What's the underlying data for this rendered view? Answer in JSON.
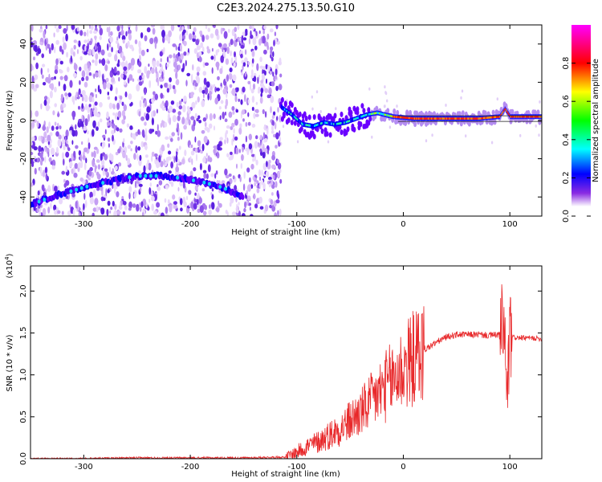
{
  "title": "C2E3.2024.275.13.50.G10",
  "chart_data": [
    {
      "type": "heatmap",
      "xlabel": "Height of straight line (km)",
      "ylabel": "Frequency (Hz)",
      "xlim": [
        -350,
        130
      ],
      "ylim": [
        -50,
        50
      ],
      "x_ticks": [
        -300,
        -200,
        -100,
        0,
        100
      ],
      "y_ticks": [
        -40,
        -20,
        0,
        20,
        40
      ],
      "colorbar": {
        "label": "Normalized spectral amplitude",
        "range": [
          0,
          1
        ],
        "ticks": [
          "0.0",
          "0.2",
          "0.4",
          "0.6",
          "0.8"
        ],
        "colors": [
          "#ffffff",
          "#7f00ff",
          "#0000ff",
          "#00ffff",
          "#00ff00",
          "#ffff00",
          "#ff0000",
          "#ff00ff"
        ]
      },
      "noise_region_x": [
        -350,
        -115
      ],
      "tones": [
        {
          "name": "lower tone",
          "x": [
            -350,
            -330,
            -300,
            -270,
            -250,
            -230,
            -210,
            -190,
            -170,
            -150
          ],
          "y": [
            -44,
            -40,
            -35,
            -31,
            -29,
            -29,
            -30,
            -32,
            -35,
            -40
          ]
        },
        {
          "name": "carrier",
          "x": [
            -115,
            -105,
            -95,
            -85,
            -75,
            -65,
            -55,
            -45,
            -35,
            -25,
            -10,
            10,
            40,
            70,
            90,
            95,
            100,
            130
          ],
          "y": [
            7,
            3,
            -2,
            -3,
            -1,
            -2,
            -1,
            1,
            3,
            4,
            2,
            1,
            1,
            1,
            2,
            6,
            2,
            2
          ],
          "peak_amplitude": 0.8
        }
      ]
    },
    {
      "type": "line",
      "xlabel": "Height of straight line (km)",
      "ylabel": "SNR (10 * v/v)",
      "y_scale_note": "(x10^4)",
      "xlim": [
        -350,
        130
      ],
      "ylim": [
        0,
        2.3
      ],
      "x_ticks": [
        -300,
        -200,
        -100,
        0,
        100
      ],
      "y_ticks": [
        "0.0",
        "0.5",
        "1.0",
        "1.5",
        "2.0"
      ],
      "series": [
        {
          "color": "#e8282a",
          "x": [
            -350,
            -300,
            -250,
            -200,
            -150,
            -110,
            -100,
            -90,
            -80,
            -70,
            -60,
            -50,
            -40,
            -30,
            -20,
            -10,
            0,
            10,
            20,
            30,
            40,
            50,
            60,
            70,
            80,
            90,
            95,
            97,
            100,
            110,
            120,
            130
          ],
          "y": [
            0.0,
            0.0,
            0.01,
            0.01,
            0.01,
            0.02,
            0.08,
            0.15,
            0.2,
            0.28,
            0.35,
            0.45,
            0.55,
            0.68,
            0.82,
            0.95,
            1.08,
            1.2,
            1.3,
            1.38,
            1.45,
            1.48,
            1.48,
            1.48,
            1.47,
            1.48,
            1.6,
            0.6,
            1.45,
            1.44,
            1.44,
            1.43
          ]
        }
      ]
    }
  ]
}
